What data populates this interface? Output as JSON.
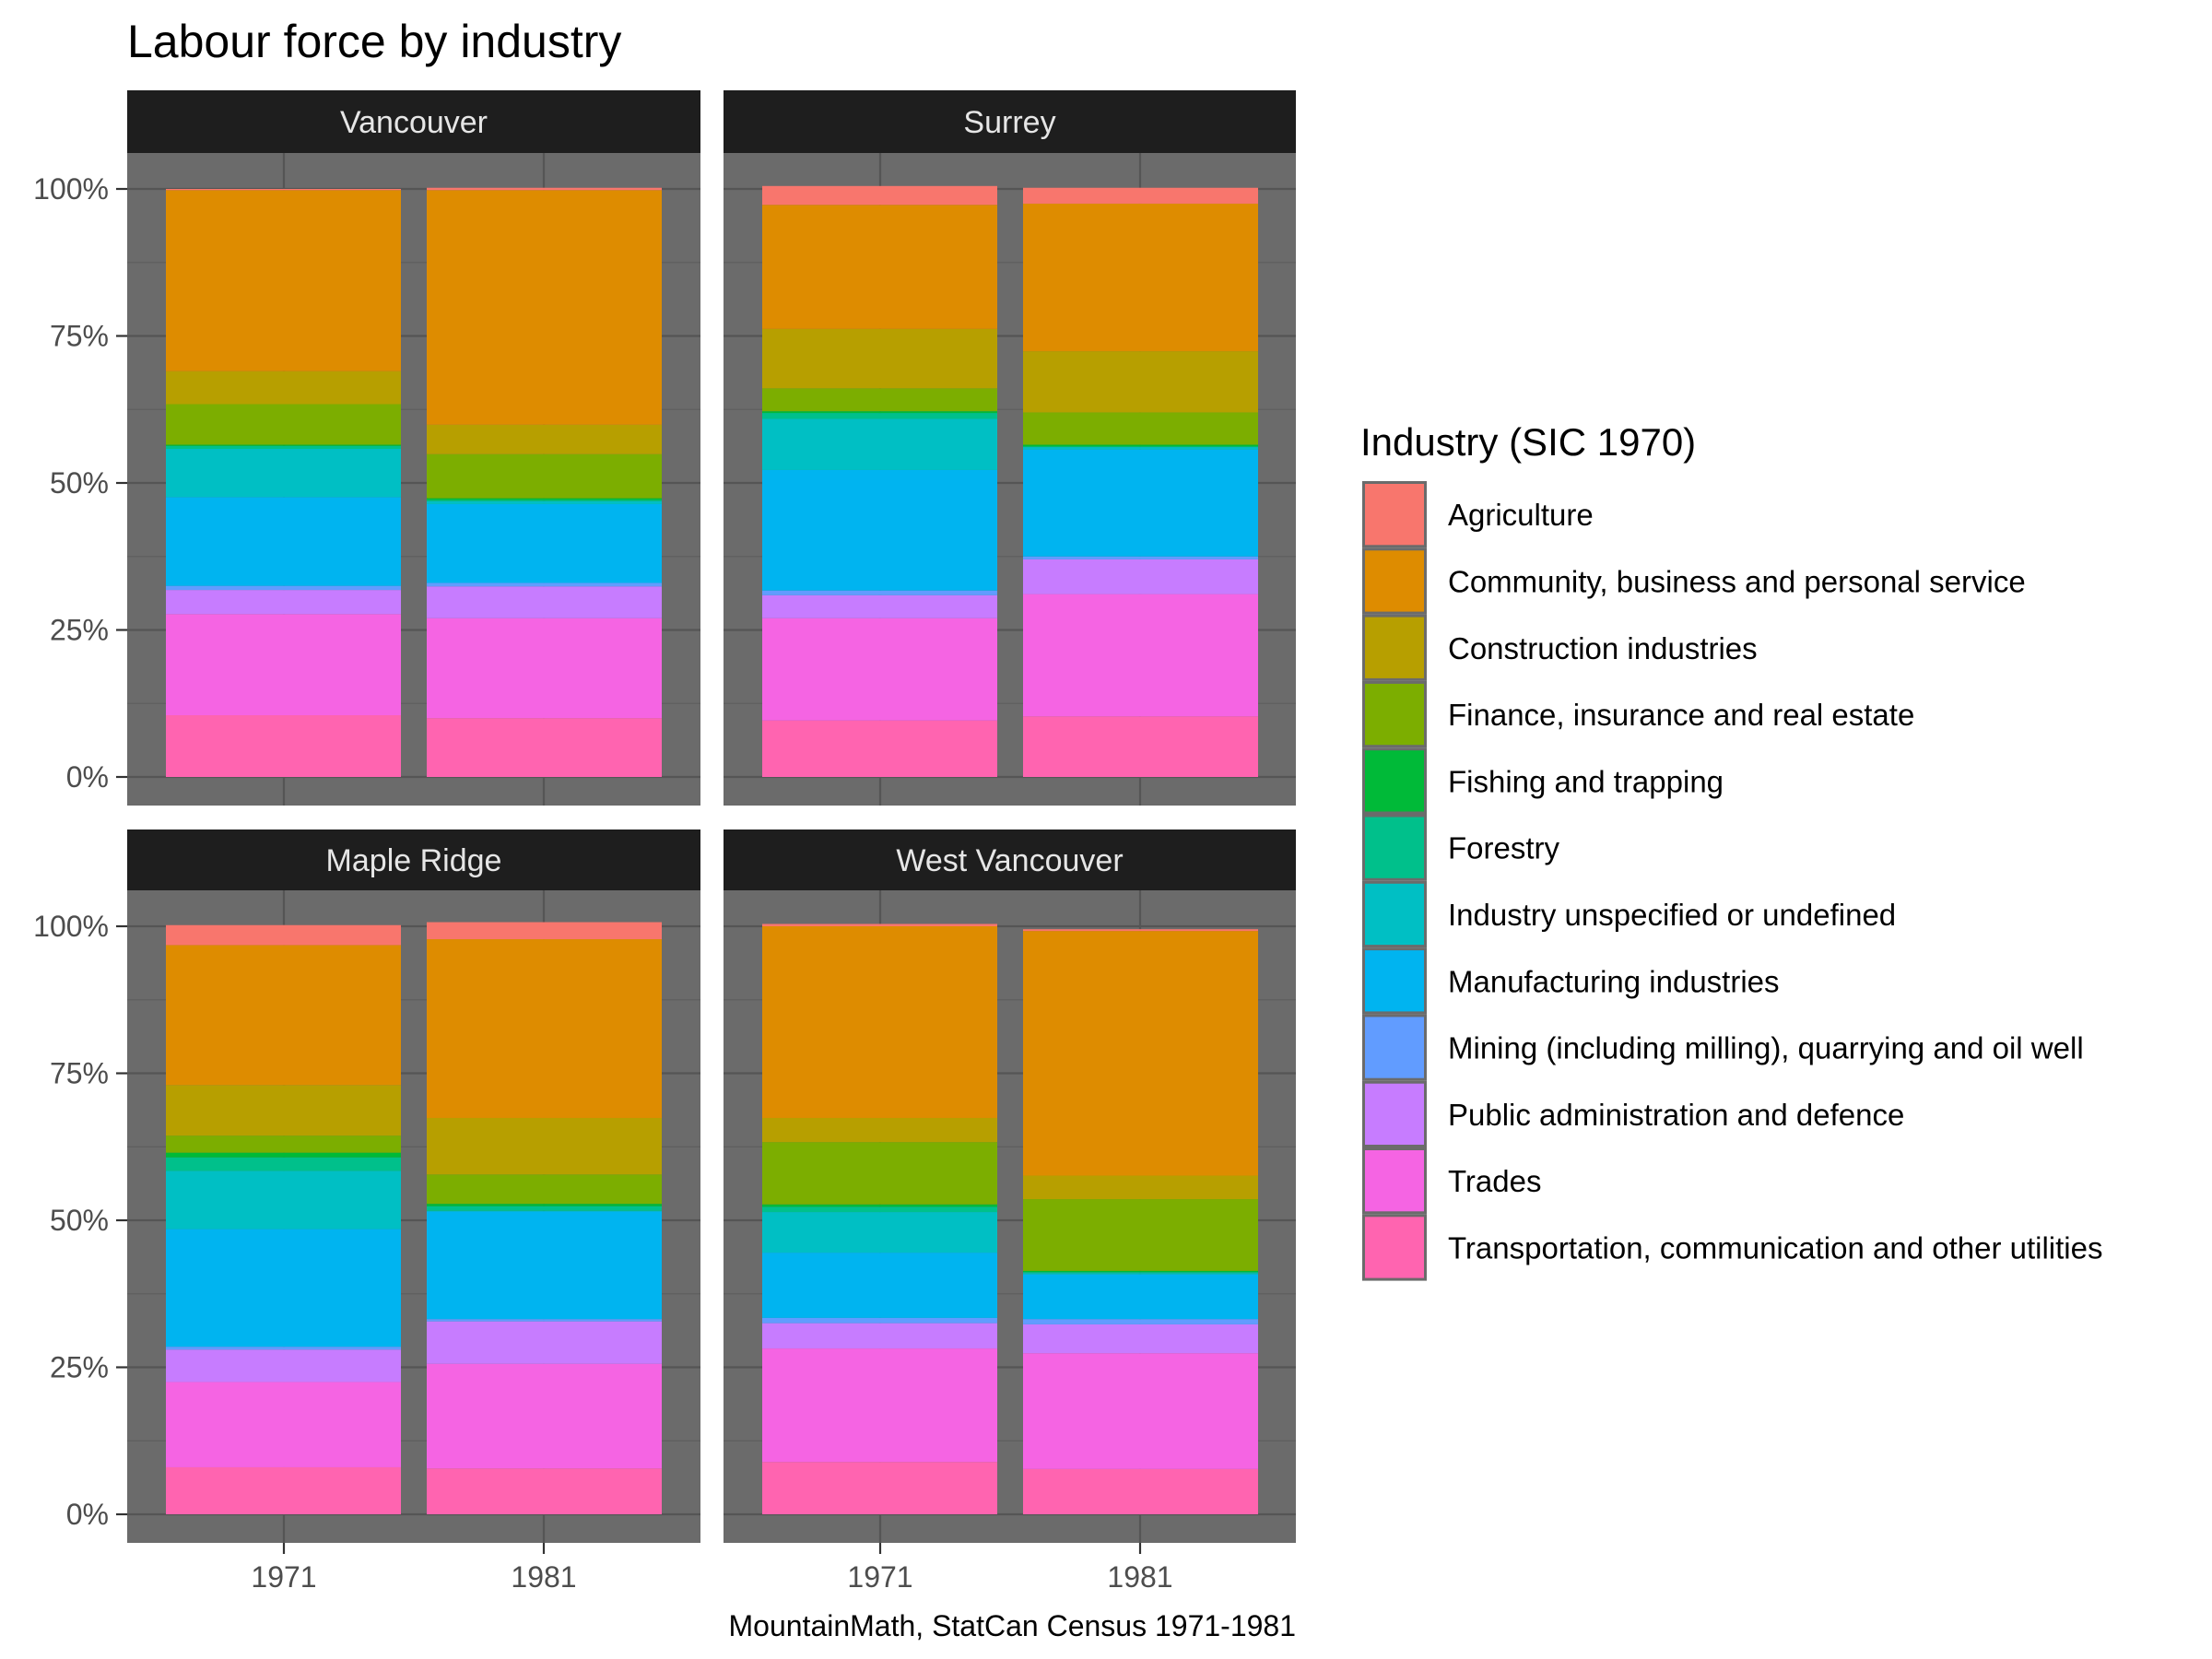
{
  "chart_data": {
    "type": "bar",
    "stacked": true,
    "position": "fill",
    "title": "Labour force by industry",
    "xlabel": "",
    "ylabel": "",
    "caption": "MountainMath, StatCan Census 1971-1981",
    "ylim": [
      0,
      1.05
    ],
    "yticks": [
      0,
      25,
      50,
      75,
      100
    ],
    "ytick_labels": [
      "0%",
      "25%",
      "50%",
      "75%",
      "100%"
    ],
    "categories": [
      "1971",
      "1981"
    ],
    "grid": true,
    "legend": {
      "title": "Industry (SIC 1970)",
      "placement": "right"
    },
    "industries": [
      {
        "name": "Agriculture",
        "color": "#F8766D"
      },
      {
        "name": "Community, business and personal service",
        "color": "#DE8C00"
      },
      {
        "name": "Construction industries",
        "color": "#B79F00"
      },
      {
        "name": "Finance, insurance and real estate",
        "color": "#7CAE00"
      },
      {
        "name": "Fishing and trapping",
        "color": "#00BA38"
      },
      {
        "name": "Forestry",
        "color": "#00C08B"
      },
      {
        "name": "Industry unspecified or undefined",
        "color": "#00BFC4"
      },
      {
        "name": "Manufacturing industries",
        "color": "#00B4F0"
      },
      {
        "name": "Mining (including milling), quarrying and oil well",
        "color": "#619CFF"
      },
      {
        "name": "Public administration and defence",
        "color": "#C77CFF"
      },
      {
        "name": "Trades",
        "color": "#F564E3"
      },
      {
        "name": "Transportation, communication and other utilities",
        "color": "#FF64B0"
      }
    ],
    "panels": [
      {
        "name": "Vancouver",
        "series": {
          "1971": [
            0.2,
            30.8,
            5.6,
            6.9,
            0.2,
            0.5,
            8.2,
            15.1,
            0.7,
            4.1,
            17.2,
            10.5
          ],
          "1981": [
            0.4,
            39.9,
            5.0,
            7.5,
            0.3,
            0.2,
            0.5,
            13.4,
            0.6,
            5.4,
            17.0,
            10.0
          ]
        }
      },
      {
        "name": "Surrey",
        "series": {
          "1971": [
            3.2,
            21.1,
            10.1,
            3.9,
            0.3,
            1.0,
            8.7,
            20.5,
            0.8,
            3.9,
            17.4,
            9.6
          ],
          "1981": [
            2.7,
            25.1,
            10.4,
            5.5,
            0.3,
            0.1,
            0.4,
            18.2,
            0.5,
            5.9,
            20.8,
            10.3
          ]
        }
      },
      {
        "name": "Maple Ridge",
        "series": {
          "1971": [
            3.4,
            23.8,
            8.6,
            2.9,
            0.8,
            2.3,
            9.9,
            20.0,
            0.5,
            5.5,
            14.5,
            8.0
          ],
          "1981": [
            2.9,
            30.4,
            9.6,
            5.0,
            0.4,
            0.8,
            0.1,
            18.3,
            0.4,
            7.2,
            17.8,
            7.8
          ]
        }
      },
      {
        "name": "West Vancouver",
        "series": {
          "1971": [
            0.4,
            32.6,
            4.1,
            10.6,
            0.4,
            0.9,
            6.9,
            11.1,
            0.9,
            4.3,
            19.3,
            8.9
          ],
          "1981": [
            0.3,
            41.6,
            4.0,
            12.2,
            0.2,
            0.2,
            0.2,
            7.6,
            0.9,
            4.9,
            19.7,
            7.7
          ]
        }
      }
    ]
  }
}
